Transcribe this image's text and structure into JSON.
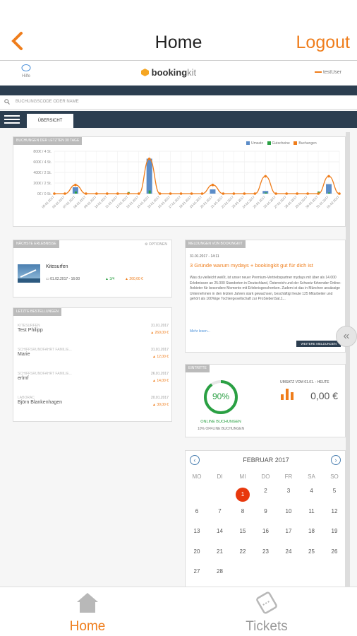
{
  "app": {
    "title": "Home",
    "logout": "Logout"
  },
  "web": {
    "help": "Hilfe",
    "brand_bold": "booking",
    "brand_kit": "kit",
    "user": "testUser",
    "search": {
      "placeholder": "BUCHUNGSCODE ODER NAME"
    },
    "tab": "ÜBERSICHT",
    "chart_panel": {
      "title": "BUCHUNGEN DER LETZTEN 30 TAGE",
      "legend": [
        "Umsatz",
        "Gutscheine",
        "Buchungen"
      ]
    },
    "next_events": {
      "title": "NÄCHSTE ERLEBNISSE",
      "options": "OPTIONEN",
      "item": {
        "name": "Kitesurfen",
        "date": "01.02.2017 - 16:00",
        "count": "3/4",
        "amount": "260,00 €"
      }
    },
    "latest_bookings": {
      "title": "LETZTE BESTELLUNGEN",
      "items": [
        {
          "type": "KITESURFEN",
          "name": "Test Philipp",
          "date": "31.01.2017",
          "amount": "260,00 €"
        },
        {
          "type": "SCHIFFSRUNDFAHRT FAMILIE...",
          "name": "Marie",
          "date": "31.01.2017",
          "amount": "12,00 €"
        },
        {
          "type": "SCHIFFSRUNDFAHRT FAMILIE...",
          "name": "erlmf",
          "date": "26.01.2017",
          "amount": "14,00 €"
        },
        {
          "type": "LABORAC",
          "name": "Björn Blankenhagen",
          "date": "20.01.2017",
          "amount": "30,00 €"
        }
      ]
    },
    "news": {
      "title": "MELDUNGEN VON BOOKINGKIT",
      "date": "31.01.2017 - 14:11",
      "headline": "3 Gründe warum mydays + bookingkit gut für dich ist",
      "body": "Was du vielleicht weißt, ist unser neuer Premium-Vertriebspartner mydays mit über als 14.000 Erlebnissen an 25.000 Standorten in Deutschland, Österreich und der Schweiz führender Online-Anbieter für besondere Momente mit Erlebnisgeschenken. Zudem ist das in München ansässige Unternehmen in den letzten Jahren stark gewachsen, beschäftigt heute 125 Mitarbeiter und gehört als 100%ige Tochtergesellschaft zur ProSiebenSat.1...",
      "more": "Mehr lesen...",
      "button": "WEITERE MELDUNGEN"
    },
    "stats": {
      "title": "EINTRITTE",
      "percent": "90%",
      "online": "ONLINE BUCHUNGEN",
      "offline": "10% OFFLINE BUCHUNGEN",
      "revenue_label": "UMSATZ VOM 01.01. - HEUTE",
      "revenue": "0,00 €",
      "percent_value": 90
    },
    "calendar": {
      "month": "FEBRUAR 2017",
      "days": [
        "MO",
        "DI",
        "MI",
        "DO",
        "FR",
        "SA",
        "SO"
      ],
      "today": "1"
    }
  },
  "chart_data": {
    "type": "line",
    "title": "BUCHUNGEN DER LETZTEN 30 TAGE",
    "yticks": [
      "800€ / 4 St.",
      "600€ / 4 St.",
      "400€ / 2 St.",
      "200€ / 2 St.",
      "0€ / 0 St."
    ],
    "x": [
      "05.01.2017",
      "06.01.2017",
      "07.01.2017",
      "08.01.2017",
      "09.01.2017",
      "10.01.2017",
      "11.01.2017",
      "12.01.2017",
      "13.01.2017",
      "14.01.2017",
      "15.01.2017",
      "16.01.2017",
      "17.01.2017",
      "18.01.2017",
      "19.01.2017",
      "20.01.2017",
      "21.01.2017",
      "22.01.2017",
      "23.01.2017",
      "24.01.2017",
      "25.01.2017",
      "26.01.2017",
      "27.01.2017",
      "28.01.2017",
      "29.01.2017",
      "30.01.2017",
      "31.01.2017",
      "01.02.2017"
    ],
    "series": [
      {
        "name": "Umsatz",
        "color": "#5b8cc8",
        "values": [
          0,
          0,
          120,
          0,
          0,
          0,
          0,
          0,
          0,
          660,
          0,
          0,
          0,
          0,
          0,
          80,
          0,
          0,
          0,
          0,
          50,
          0,
          0,
          0,
          0,
          0,
          180,
          0
        ]
      },
      {
        "name": "Gutscheine",
        "color": "#2aa043",
        "values": [
          0,
          0,
          40,
          0,
          0,
          0,
          0,
          30,
          0,
          60,
          0,
          0,
          0,
          0,
          0,
          0,
          0,
          0,
          0,
          0,
          20,
          0,
          0,
          0,
          0,
          40,
          20,
          0
        ]
      },
      {
        "name": "Buchungen",
        "color": "#ef7d1b",
        "values": [
          0,
          0,
          1,
          0,
          0,
          0,
          0,
          0,
          0,
          4,
          0,
          0,
          0,
          0,
          0,
          1,
          0,
          0,
          0,
          0,
          2,
          0,
          0,
          0,
          0,
          0,
          2,
          0
        ]
      }
    ]
  }
}
